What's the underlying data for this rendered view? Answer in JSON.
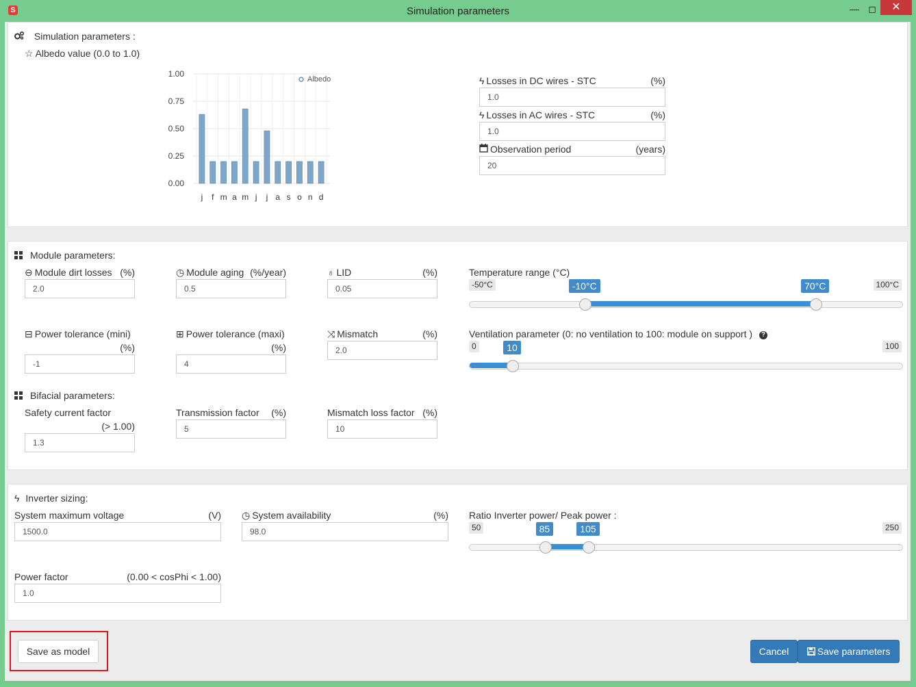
{
  "window": {
    "title": "Simulation parameters",
    "minimize": "—",
    "maximize": "◻",
    "close": "✕"
  },
  "simulation": {
    "title": "Simulation parameters :",
    "albedo_label": "Albedo value (0.0 to 1.0)",
    "losses_dc": {
      "label": "Losses in DC wires - STC",
      "unit": "(%)",
      "value": "1.0"
    },
    "losses_ac": {
      "label": "Losses in AC wires - STC",
      "unit": "(%)",
      "value": "1.0"
    },
    "observation": {
      "label": "Observation period",
      "unit": "(years)",
      "value": "20"
    }
  },
  "chart_data": {
    "type": "bar",
    "categories": [
      "j",
      "f",
      "m",
      "a",
      "m",
      "j",
      "j",
      "a",
      "s",
      "o",
      "n",
      "d"
    ],
    "series": [
      {
        "name": "Albedo",
        "values": [
          0.63,
          0.2,
          0.2,
          0.2,
          0.68,
          0.2,
          0.48,
          0.2,
          0.2,
          0.2,
          0.2,
          0.2
        ]
      }
    ],
    "ylim": [
      0,
      1
    ],
    "yticks": [
      "0.00",
      "0.25",
      "0.50",
      "0.75",
      "1.00"
    ],
    "legend": "top-right",
    "color": "#7ea6c8"
  },
  "module": {
    "title": "Module parameters:",
    "dirt": {
      "label": "Module dirt losses",
      "unit": "(%)",
      "value": "2.0"
    },
    "aging": {
      "label": "Module aging",
      "unit": "(%/year)",
      "value": "0.5"
    },
    "lid": {
      "label": "LID",
      "unit": "(%)",
      "value": "0.05"
    },
    "tol_min": {
      "label": "Power tolerance (mini)",
      "unit": "(%)",
      "value": "-1"
    },
    "tol_max": {
      "label": "Power tolerance (maxi)",
      "unit": "(%)",
      "value": "4"
    },
    "mismatch": {
      "label": "Mismatch",
      "unit": "(%)",
      "value": "2.0"
    },
    "temperature": {
      "label": "Temperature range (°C)",
      "min": "-50°C",
      "max": "100°C",
      "low": "-10°C",
      "high": "70°C",
      "low_fraction": 0.267,
      "high_fraction": 0.8
    },
    "ventilation": {
      "label": "Ventilation parameter (0: no ventilation to 100: module on support )",
      "help": "?",
      "min": "0",
      "max": "100",
      "value": "10",
      "fraction": 0.1
    }
  },
  "bifacial": {
    "title": "Bifacial parameters:",
    "safety": {
      "label": "Safety current factor",
      "unit": "(> 1.00)",
      "value": "1.3"
    },
    "transmission": {
      "label": "Transmission factor",
      "unit": "(%)",
      "value": "5"
    },
    "mismatch_loss": {
      "label": "Mismatch loss factor",
      "unit": "(%)",
      "value": "10"
    }
  },
  "inverter": {
    "title": "Inverter sizing:",
    "max_voltage": {
      "label": "System maximum voltage",
      "unit": "(V)",
      "value": "1500.0"
    },
    "availability": {
      "label": "System availability",
      "unit": "(%)",
      "value": "98.0"
    },
    "power_factor": {
      "label": "Power factor",
      "unit": "(0.00 < cosPhi < 1.00)",
      "value": "1.0"
    },
    "ratio": {
      "label": "Ratio Inverter power/ Peak power :",
      "min": "50",
      "max": "250",
      "low": "85",
      "high": "105",
      "low_fraction": 0.175,
      "high_fraction": 0.275
    }
  },
  "footer": {
    "save_model": "Save as model",
    "cancel": "Cancel",
    "save_params": "Save parameters"
  }
}
